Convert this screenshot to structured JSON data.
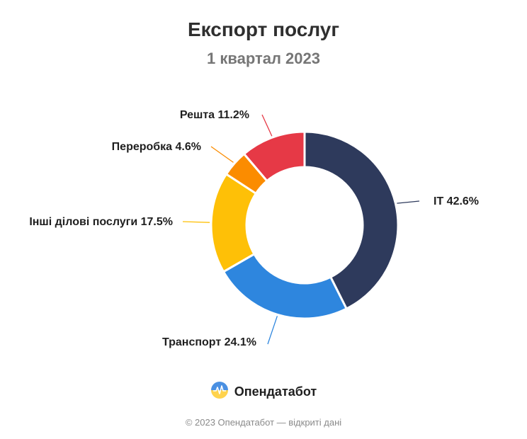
{
  "header": {
    "title": "Експорт послуг",
    "subtitle": "1 квартал 2023"
  },
  "chart_data": {
    "type": "pie",
    "donut": true,
    "title": "Експорт послуг",
    "subtitle": "1 квартал 2023",
    "slices": [
      {
        "label": "IT",
        "value": 42.6,
        "display": "IT 42.6%",
        "color": "#2e3a5c"
      },
      {
        "label": "Транспорт",
        "value": 24.1,
        "display": "Транспорт 24.1%",
        "color": "#2e86de"
      },
      {
        "label": "Інші ділові послуги",
        "value": 17.5,
        "display": "Інші ділові послуги 17.5%",
        "color": "#fec007"
      },
      {
        "label": "Переробка",
        "value": 4.6,
        "display": "Переробка 4.6%",
        "color": "#fb8c00"
      },
      {
        "label": "Решта",
        "value": 11.2,
        "display": "Решта 11.2%",
        "color": "#e63946"
      }
    ],
    "legend": "none"
  },
  "brand": {
    "name": "Опендатабот",
    "logo_icon": "opendatabot-logo-icon"
  },
  "footer": {
    "text": "© 2023 Опендатабот — відкриті дані"
  }
}
